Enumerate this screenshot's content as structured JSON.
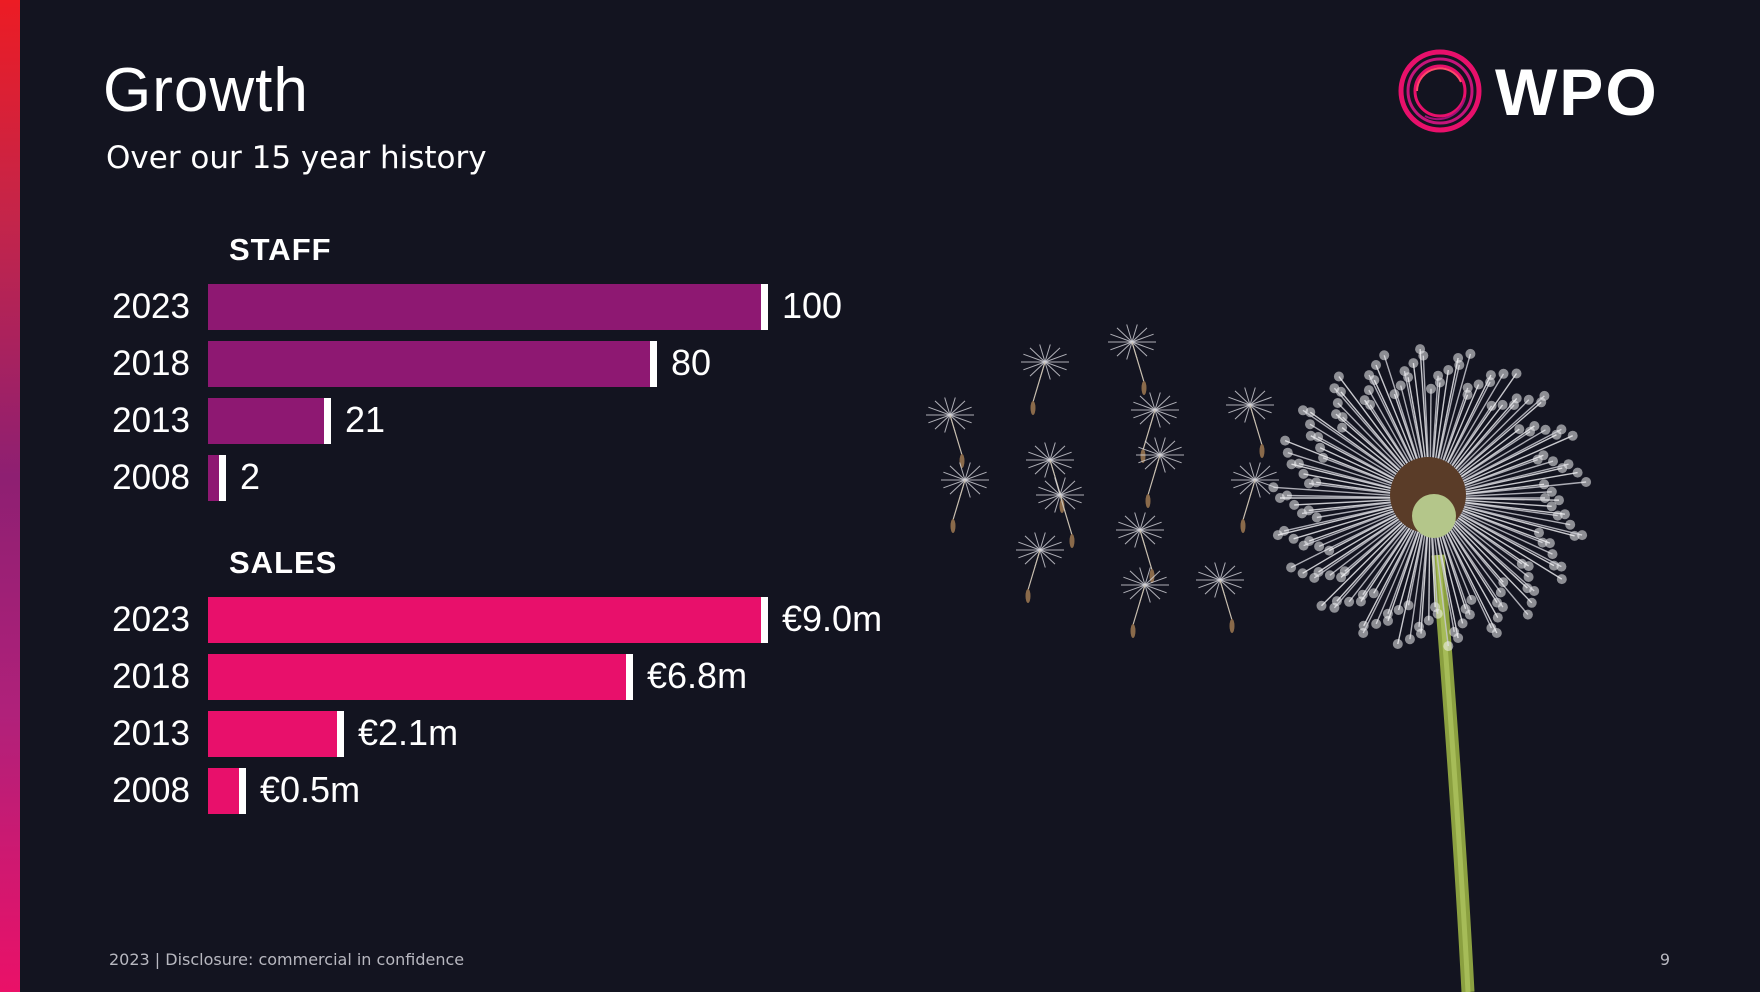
{
  "slide": {
    "title": "Growth",
    "subtitle": "Over our 15 year history",
    "logo_text": "WPO",
    "footer": "2023 | Disclosure: commercial in confidence",
    "page_number": "9"
  },
  "colors": {
    "background": "#131420",
    "staff_bar": "#8e1872",
    "sales_bar": "#e8106b",
    "bar_end": "#ffffff",
    "logo_accent": "#e8106b"
  },
  "chart_data": [
    {
      "type": "bar",
      "orientation": "horizontal",
      "title": "STAFF",
      "categories": [
        "2023",
        "2018",
        "2013",
        "2008"
      ],
      "values": [
        100,
        80,
        21,
        2
      ],
      "value_labels": [
        "100",
        "80",
        "21",
        "2"
      ]
    },
    {
      "type": "bar",
      "orientation": "horizontal",
      "title": "SALES",
      "categories": [
        "2023",
        "2018",
        "2013",
        "2008"
      ],
      "values": [
        9.0,
        6.8,
        2.1,
        0.5
      ],
      "value_labels": [
        "€9.0m",
        "€6.8m",
        "€2.1m",
        "€0.5m"
      ]
    }
  ]
}
